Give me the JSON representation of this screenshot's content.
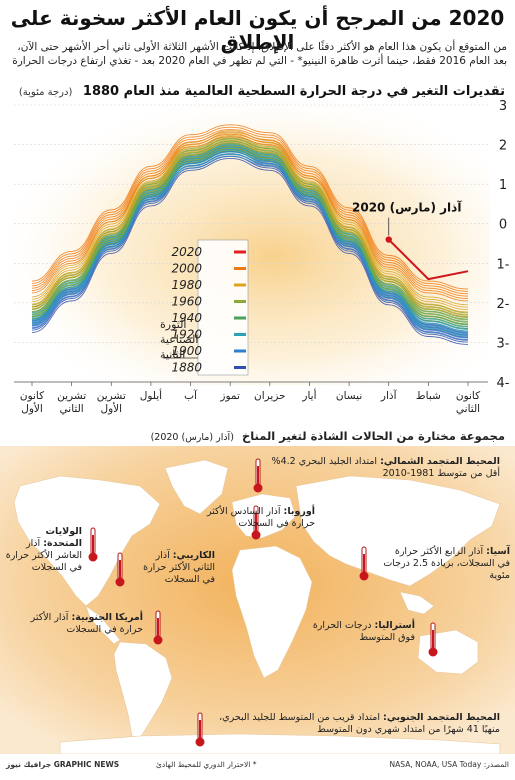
{
  "title": "2020 من المرجح أن يكون العام الأكثر سخونة على الإطلاق",
  "intro": "من المتوقع أن يكون هذا العام هو الأكثر دفئًا على الإطلاق، إذ كانت الأشهر الثلاثة الأولى ثاني أحر الأشهر حتى الآن، بعد العام 2016 فقط، حينما أثرت ظاهرة النينيو* - التي لم تظهر في العام 2020 بعد - تغذي ارتفاع درجات الحرارة",
  "chart_data": {
    "type": "line",
    "title": "تقديرات التغير في درجة الحرارة السطحية العالمية منذ العام 1880",
    "unit": "(درجة مئوية)",
    "months": [
      "كانون الثاني",
      "شباط",
      "آذار",
      "نيسان",
      "أيار",
      "حزيران",
      "تموز",
      "آب",
      "أيلول",
      "تشرين الأول",
      "تشرين الثاني",
      "كانون الأول"
    ],
    "ylim": [
      -4,
      3
    ],
    "yticks": [
      3,
      2,
      1,
      0,
      -1,
      -2,
      -3,
      -4
    ],
    "legend": [
      "2020",
      "2000",
      "1980",
      "1960",
      "1940",
      "1920",
      "1900",
      "1880"
    ],
    "legend_colors": [
      "#e02020",
      "#f07a10",
      "#d9a320",
      "#8ca83a",
      "#4aa05a",
      "#2aa0b8",
      "#2f7fd0",
      "#3050b0"
    ],
    "series": [
      {
        "name": "1880",
        "values": [
          -2.9,
          -2.7,
          -1.9,
          -0.6,
          0.6,
          1.5,
          1.8,
          1.5,
          0.6,
          -0.6,
          -1.8,
          -2.6
        ]
      },
      {
        "name": "1900",
        "values": [
          -2.8,
          -2.6,
          -1.8,
          -0.5,
          0.7,
          1.6,
          1.85,
          1.55,
          0.7,
          -0.5,
          -1.7,
          -2.5
        ]
      },
      {
        "name": "1920",
        "values": [
          -2.7,
          -2.5,
          -1.7,
          -0.4,
          0.75,
          1.65,
          1.9,
          1.6,
          0.75,
          -0.45,
          -1.6,
          -2.4
        ]
      },
      {
        "name": "1940",
        "values": [
          -2.5,
          -2.3,
          -1.55,
          -0.3,
          0.85,
          1.75,
          2.0,
          1.7,
          0.85,
          -0.35,
          -1.45,
          -2.25
        ]
      },
      {
        "name": "1960",
        "values": [
          -2.4,
          -2.2,
          -1.5,
          -0.25,
          0.9,
          1.8,
          2.05,
          1.75,
          0.9,
          -0.3,
          -1.4,
          -2.2
        ]
      },
      {
        "name": "1980",
        "values": [
          -2.2,
          -2.0,
          -1.3,
          -0.05,
          1.05,
          1.95,
          2.2,
          1.9,
          1.05,
          -0.1,
          -1.2,
          -2.0
        ]
      },
      {
        "name": "2000",
        "values": [
          -1.8,
          -1.6,
          -0.95,
          0.25,
          1.3,
          2.15,
          2.35,
          2.1,
          1.3,
          0.2,
          -0.85,
          -1.6
        ]
      },
      {
        "name": "2020",
        "values": [
          -1.2,
          -1.4,
          -0.4
        ]
      }
    ],
    "annotation_2020": "آذار (مارس) 2020",
    "annotation_industrial": "الثورة الصناعية الثانية"
  },
  "map": {
    "title": "مجموعة مختارة من الحالات الشاذة لتغير المناخ",
    "subtitle": "(آذار (مارس) 2020)",
    "callouts": [
      {
        "region": "المحيط المتجمد الشمالي:",
        "text": "امتداد الجليد البحري 4.2% أقل من متوسط 1981-2010"
      },
      {
        "region": "أوروبا:",
        "text": "آذار السادس الأكثر حرارة في السجلات"
      },
      {
        "region": "الولايات المتحدة:",
        "text": "آذار العاشر الأكثر حرارة في السجلات"
      },
      {
        "region": "الكاريبي:",
        "text": "آذار الثاني الأكثر حرارة في السجلات"
      },
      {
        "region": "آسيا:",
        "text": "آذار الرابع الأكثر حرارة في السجلات، بزيادة 2.5 درجات مئوية"
      },
      {
        "region": "أمريكا الجنوبية:",
        "text": "آذار الأكثر حرارة في السجلات"
      },
      {
        "region": "أستراليا:",
        "text": "درجات الحرارة فوق المتوسط"
      },
      {
        "region": "المحيط المتجمد الجنوبي:",
        "text": "امتداد قريب من المتوسط للجليد البحري، منهيًا 41 شهرًا من امتداد شهري دون المتوسط"
      }
    ]
  },
  "footer": {
    "source": "المصدر: NASA, NOAA, USA Today",
    "footnote": "* الاحترار الدوري للمحيط الهادئ",
    "brand": "GRAPHIC NEWS جرافيك نيوز"
  }
}
